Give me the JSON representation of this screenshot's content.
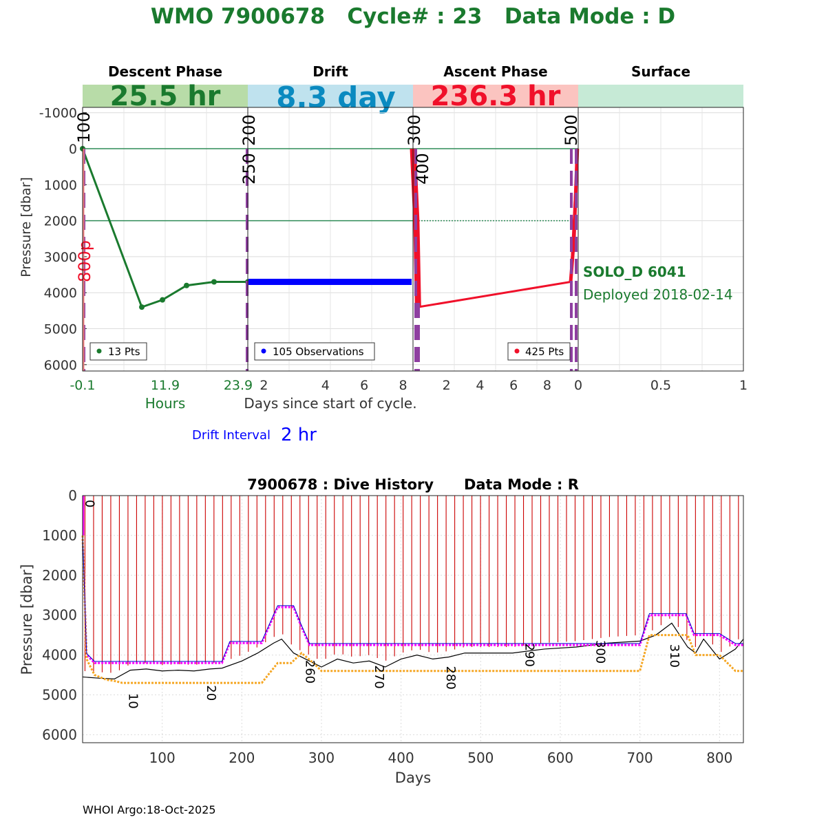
{
  "header": {
    "title": "WMO 7900678   Cycle# : 23   Data Mode : D",
    "title_color": "#1a7a2e"
  },
  "top_panel": {
    "phases": [
      {
        "name": "Descent Phase",
        "duration": "25.5 hr",
        "band_color": "#b8dca8",
        "text_color": "#1a7a2e"
      },
      {
        "name": "Drift",
        "duration": "8.3 day",
        "band_color": "#bfe2ee",
        "text_color": "#0a8ac0"
      },
      {
        "name": "Ascent Phase",
        "duration": "236.3 hr",
        "band_color": "#fbc4c0",
        "text_color": "#f0102a"
      },
      {
        "name": "Surface",
        "duration": "",
        "band_color": "#c6ead6",
        "text_color": "#1a7a2e"
      }
    ],
    "ylabel": "Pressure [dbar]",
    "yticks": [
      "-1000",
      "0",
      "1000",
      "2000",
      "3000",
      "4000",
      "5000",
      "6000"
    ],
    "ylim": [
      -1200,
      6200
    ],
    "descent_xticks": [
      "-0.1",
      "11.9",
      "23.9"
    ],
    "descent_xlabel": "Hours",
    "drift_xticks": [
      "2",
      "4",
      "6",
      "8"
    ],
    "ascent_xticks": [
      "2",
      "4",
      "6",
      "8"
    ],
    "surface_xticks": [
      "0",
      "0.5",
      "1"
    ],
    "days_xlabel": "Days since start of cycle.",
    "drift_interval_label": "Drift Interval",
    "drift_interval_value": "2 hr",
    "legends": {
      "descent": "13 Pts",
      "drift": "105 Observations",
      "ascent": "425 Pts"
    },
    "float_type": "SOLO_D 6041",
    "deployed": "Deployed 2018-02-14",
    "vertical_labels": [
      "100",
      "200",
      "250",
      "300",
      "400",
      "500"
    ],
    "park_pressure_label": "800p"
  },
  "chart_data": [
    {
      "type": "line",
      "title": "Descent Phase",
      "xlabel": "Hours",
      "ylabel": "Pressure [dbar]",
      "x": [
        -0.1,
        8.5,
        11.5,
        15.0,
        19.0,
        23.9
      ],
      "y": [
        0,
        4400,
        4200,
        3800,
        3700,
        3700
      ],
      "ylim": [
        6200,
        -1200
      ]
    },
    {
      "type": "scatter",
      "title": "Drift",
      "series": [
        {
          "name": "105 Observations",
          "pressure_approx": 3700
        }
      ]
    },
    {
      "type": "line",
      "title": "Ascent Phase",
      "x_days": [
        0.0,
        0.2,
        0.3,
        9.4,
        9.8
      ],
      "y": [
        0,
        3000,
        4400,
        3700,
        0
      ]
    },
    {
      "type": "line",
      "title": "7900678 : Dive History      Data Mode : R",
      "xlabel": "Days",
      "ylabel": "Pressure [dbar]",
      "xticks": [
        "100",
        "200",
        "300",
        "400",
        "500",
        "600",
        "700",
        "800"
      ],
      "yticks": [
        "0",
        "1000",
        "2000",
        "3000",
        "4000",
        "5000",
        "6000"
      ],
      "xlim": [
        0,
        830
      ],
      "ylim": [
        0,
        6200
      ],
      "series": [
        {
          "name": "bottom",
          "x": [
            0,
            20,
            40,
            60,
            80,
            100,
            120,
            140,
            160,
            175,
            200,
            220,
            240,
            250,
            265,
            280,
            300,
            320,
            340,
            360,
            380,
            400,
            420,
            440,
            460,
            480,
            500,
            540,
            580,
            620,
            660,
            700,
            720,
            740,
            760,
            770,
            780,
            800,
            820,
            830
          ],
          "y": [
            4550,
            4580,
            4600,
            4380,
            4350,
            4400,
            4380,
            4400,
            4350,
            4330,
            4150,
            3950,
            3700,
            3600,
            3950,
            4100,
            4300,
            4100,
            4200,
            4150,
            4300,
            4100,
            4000,
            4100,
            4050,
            3950,
            3950,
            3950,
            3850,
            3800,
            3700,
            3650,
            3500,
            3200,
            3800,
            3950,
            3600,
            4100,
            3850,
            3600
          ]
        },
        {
          "name": "park",
          "x": [
            0,
            5,
            15,
            30,
            60,
            100,
            150,
            175,
            185,
            200,
            225,
            235,
            245,
            265,
            275,
            285,
            300,
            340,
            400,
            500,
            600,
            680,
            700,
            712,
            740,
            758,
            768,
            780,
            800,
            820,
            830
          ],
          "y": [
            1000,
            4000,
            4200,
            4200,
            4200,
            4200,
            4200,
            4200,
            3700,
            3700,
            3700,
            3250,
            2800,
            2800,
            3300,
            3750,
            3750,
            3750,
            3750,
            3750,
            3750,
            3750,
            3750,
            3000,
            3000,
            3000,
            3500,
            3500,
            3500,
            3750,
            3750
          ]
        },
        {
          "name": "profile",
          "x": [
            0,
            5,
            15,
            30,
            40,
            50,
            60,
            100,
            150,
            200,
            225,
            235,
            245,
            262,
            275,
            290,
            300,
            340,
            400,
            500,
            600,
            680,
            700,
            712,
            750,
            760,
            770,
            790,
            800,
            820,
            830
          ],
          "y": [
            1000,
            4100,
            4500,
            4620,
            4650,
            4700,
            4700,
            4700,
            4700,
            4700,
            4700,
            4450,
            4200,
            4200,
            3950,
            4200,
            4400,
            4400,
            4400,
            4400,
            4400,
            4400,
            4400,
            3500,
            3500,
            3500,
            4000,
            4000,
            4000,
            4400,
            4400
          ]
        }
      ],
      "cycle_labels": [
        "0",
        "10",
        "20",
        "260",
        "270",
        "280",
        "290",
        "300",
        "310"
      ]
    }
  ],
  "footer": {
    "credit": "WHOI Argo:18-Oct-2025"
  }
}
